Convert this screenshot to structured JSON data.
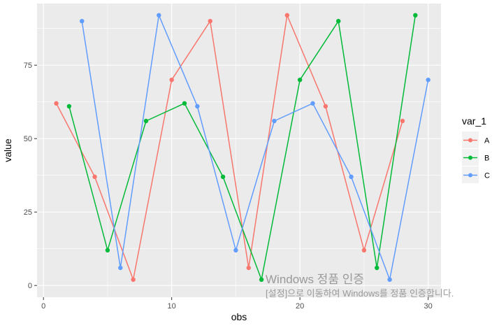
{
  "chart_data": {
    "type": "line",
    "xlabel": "obs",
    "ylabel": "value",
    "xlim": [
      -0.5,
      31
    ],
    "ylim": [
      -4,
      96
    ],
    "x_ticks": [
      0,
      10,
      20,
      30
    ],
    "y_ticks": [
      0,
      25,
      50,
      75
    ],
    "grid": true,
    "legend": {
      "title": "var_1",
      "position": "right"
    },
    "series": [
      {
        "name": "A",
        "color": "#F8766D",
        "x": [
          1,
          4,
          7,
          10,
          13,
          16,
          19,
          22,
          25,
          28
        ],
        "y": [
          62,
          37,
          2,
          70,
          90,
          6,
          92,
          61,
          12,
          56
        ]
      },
      {
        "name": "B",
        "color": "#00BA38",
        "x": [
          2,
          5,
          8,
          11,
          14,
          17,
          20,
          23,
          26,
          29
        ],
        "y": [
          61,
          12,
          56,
          62,
          37,
          2,
          70,
          90,
          6,
          92
        ]
      },
      {
        "name": "C",
        "color": "#619CFF",
        "x": [
          3,
          6,
          9,
          12,
          15,
          18,
          21,
          24,
          27,
          30
        ],
        "y": [
          90,
          6,
          92,
          61,
          12,
          56,
          62,
          37,
          2,
          70
        ]
      }
    ]
  },
  "watermark": {
    "title": "Windows 정품 인증",
    "subtitle": "[설정]으로 이동하여 Windows를 정품 인증합니다."
  }
}
